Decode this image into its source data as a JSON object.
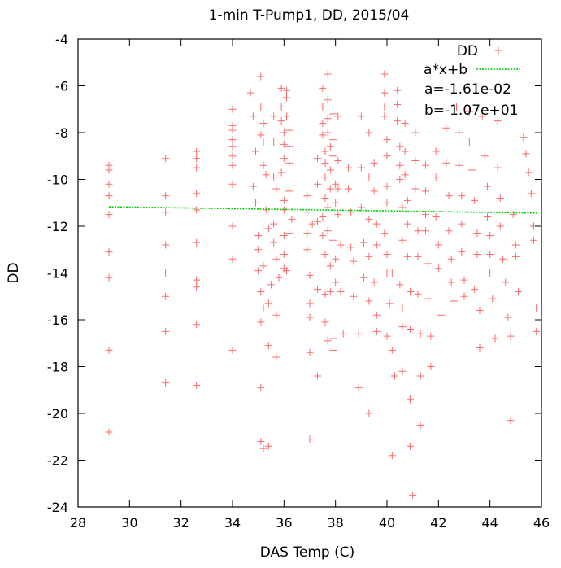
{
  "chart_data": {
    "type": "scatter",
    "title": "1-min T-Pump1, DD, 2015/04",
    "xlabel": "DAS Temp (C)",
    "ylabel": "DD",
    "xlim": [
      28,
      46
    ],
    "ylim": [
      -24,
      -4
    ],
    "xticks": [
      "28",
      "30",
      "32",
      "34",
      "36",
      "38",
      "40",
      "42",
      "44",
      "46"
    ],
    "yticks": [
      "-24",
      "-22",
      "-20",
      "-18",
      "-16",
      "-14",
      "-12",
      "-10",
      "-8",
      "-6",
      "-4"
    ],
    "grid": false,
    "legend_position": "top-right",
    "colors": {
      "points": "#ff6a6a",
      "fit": "#00cc00",
      "frame": "#000000"
    },
    "series": [
      {
        "name": "DD",
        "marker": "plus",
        "points": [
          [
            29.2,
            -9.4
          ],
          [
            29.2,
            -9.6
          ],
          [
            29.2,
            -10.2
          ],
          [
            29.2,
            -10.7
          ],
          [
            29.2,
            -11.5
          ],
          [
            29.2,
            -13.1
          ],
          [
            29.2,
            -14.2
          ],
          [
            29.2,
            -17.3
          ],
          [
            29.2,
            -20.8
          ],
          [
            31.4,
            -9.1
          ],
          [
            31.4,
            -10.7
          ],
          [
            31.4,
            -11.4
          ],
          [
            31.4,
            -12.8
          ],
          [
            31.4,
            -14.0
          ],
          [
            31.4,
            -15.0
          ],
          [
            31.4,
            -16.5
          ],
          [
            31.4,
            -18.7
          ],
          [
            32.6,
            -8.8
          ],
          [
            32.6,
            -9.1
          ],
          [
            32.6,
            -9.5
          ],
          [
            32.6,
            -10.6
          ],
          [
            32.6,
            -11.3
          ],
          [
            32.6,
            -12.7
          ],
          [
            32.6,
            -14.3
          ],
          [
            32.6,
            -14.6
          ],
          [
            32.6,
            -16.2
          ],
          [
            32.6,
            -18.8
          ],
          [
            34.0,
            -7.0
          ],
          [
            34.0,
            -7.7
          ],
          [
            34.0,
            -7.9
          ],
          [
            34.0,
            -8.3
          ],
          [
            34.0,
            -8.6
          ],
          [
            34.0,
            -9.0
          ],
          [
            34.0,
            -9.4
          ],
          [
            34.0,
            -10.2
          ],
          [
            34.0,
            -12.0
          ],
          [
            34.0,
            -13.4
          ],
          [
            34.0,
            -17.3
          ],
          [
            34.7,
            -6.3
          ],
          [
            34.8,
            -7.3
          ],
          [
            34.9,
            -8.8
          ],
          [
            34.8,
            -10.3
          ],
          [
            34.9,
            -11.0
          ],
          [
            35.0,
            -12.4
          ],
          [
            35.0,
            -13.0
          ],
          [
            35.0,
            -13.9
          ],
          [
            35.1,
            -5.6
          ],
          [
            35.1,
            -6.9
          ],
          [
            35.2,
            -7.6
          ],
          [
            35.1,
            -8.1
          ],
          [
            35.2,
            -8.4
          ],
          [
            35.2,
            -9.4
          ],
          [
            35.3,
            -9.8
          ],
          [
            35.3,
            -11.3
          ],
          [
            35.4,
            -12.1
          ],
          [
            35.2,
            -13.7
          ],
          [
            35.1,
            -14.8
          ],
          [
            35.2,
            -15.5
          ],
          [
            35.1,
            -16.1
          ],
          [
            35.1,
            -18.9
          ],
          [
            35.1,
            -21.2
          ],
          [
            35.2,
            -21.5
          ],
          [
            35.4,
            -21.4
          ],
          [
            35.4,
            -17.1
          ],
          [
            35.4,
            -15.3
          ],
          [
            35.5,
            -14.5
          ],
          [
            35.6,
            -7.3
          ],
          [
            35.6,
            -8.4
          ],
          [
            35.6,
            -9.9
          ],
          [
            35.7,
            -10.4
          ],
          [
            35.6,
            -11.9
          ],
          [
            35.6,
            -12.7
          ],
          [
            35.7,
            -13.4
          ],
          [
            35.8,
            -14.2
          ],
          [
            35.7,
            -15.8
          ],
          [
            35.7,
            -17.6
          ],
          [
            35.9,
            -6.1
          ],
          [
            35.9,
            -6.9
          ],
          [
            35.9,
            -7.5
          ],
          [
            36.0,
            -8.0
          ],
          [
            36.0,
            -8.5
          ],
          [
            36.0,
            -9.1
          ],
          [
            35.9,
            -9.7
          ],
          [
            36.0,
            -10.9
          ],
          [
            36.0,
            -11.3
          ],
          [
            36.0,
            -12.4
          ],
          [
            36.0,
            -13.2
          ],
          [
            36.0,
            -13.8
          ],
          [
            36.1,
            -6.2
          ],
          [
            36.1,
            -6.5
          ],
          [
            36.1,
            -7.3
          ],
          [
            36.2,
            -7.9
          ],
          [
            36.2,
            -8.6
          ],
          [
            36.2,
            -9.3
          ],
          [
            36.2,
            -10.5
          ],
          [
            36.3,
            -11.7
          ],
          [
            36.2,
            -12.3
          ],
          [
            36.1,
            -13.9
          ],
          [
            36.9,
            -10.7
          ],
          [
            36.9,
            -11.4
          ],
          [
            36.9,
            -12.3
          ],
          [
            36.9,
            -13.0
          ],
          [
            37.0,
            -14.1
          ],
          [
            37.0,
            -15.3
          ],
          [
            37.0,
            -15.9
          ],
          [
            37.0,
            -17.4
          ],
          [
            37.0,
            -21.1
          ],
          [
            37.1,
            -11.9
          ],
          [
            37.3,
            -9.1
          ],
          [
            37.3,
            -10.2
          ],
          [
            37.3,
            -11.8
          ],
          [
            37.3,
            -14.7
          ],
          [
            37.3,
            -18.4
          ],
          [
            37.5,
            -6.1
          ],
          [
            37.5,
            -6.9
          ],
          [
            37.5,
            -7.6
          ],
          [
            37.5,
            -8.1
          ],
          [
            37.6,
            -8.8
          ],
          [
            37.6,
            -9.3
          ],
          [
            37.6,
            -9.9
          ],
          [
            37.6,
            -10.8
          ],
          [
            37.5,
            -11.6
          ],
          [
            37.5,
            -12.4
          ],
          [
            37.6,
            -13.2
          ],
          [
            37.6,
            -14.9
          ],
          [
            37.6,
            -16.1
          ],
          [
            37.7,
            -5.5
          ],
          [
            37.7,
            -6.6
          ],
          [
            37.7,
            -7.4
          ],
          [
            37.7,
            -8.0
          ],
          [
            37.8,
            -8.6
          ],
          [
            37.8,
            -9.6
          ],
          [
            37.8,
            -10.4
          ],
          [
            37.7,
            -11.2
          ],
          [
            37.7,
            -12.2
          ],
          [
            37.8,
            -13.7
          ],
          [
            37.8,
            -14.8
          ],
          [
            37.7,
            -16.9
          ],
          [
            37.9,
            -7.2
          ],
          [
            37.9,
            -8.3
          ],
          [
            37.9,
            -9.0
          ],
          [
            38.0,
            -10.2
          ],
          [
            38.0,
            -11.0
          ],
          [
            37.9,
            -12.6
          ],
          [
            38.0,
            -13.4
          ],
          [
            38.0,
            -14.4
          ],
          [
            37.9,
            -16.8
          ],
          [
            37.9,
            -17.3
          ],
          [
            38.1,
            -7.3
          ],
          [
            38.1,
            -9.2
          ],
          [
            38.1,
            -10.4
          ],
          [
            38.1,
            -11.5
          ],
          [
            38.2,
            -12.8
          ],
          [
            38.2,
            -14.8
          ],
          [
            38.3,
            -16.6
          ],
          [
            38.5,
            -9.5
          ],
          [
            38.5,
            -10.4
          ],
          [
            38.6,
            -11.4
          ],
          [
            38.6,
            -12.9
          ],
          [
            38.7,
            -13.5
          ],
          [
            38.7,
            -15.0
          ],
          [
            38.9,
            -16.6
          ],
          [
            38.9,
            -18.9
          ],
          [
            39.0,
            -7.3
          ],
          [
            39.0,
            -9.5
          ],
          [
            39.0,
            -11.2
          ],
          [
            39.1,
            -12.7
          ],
          [
            39.1,
            -14.2
          ],
          [
            39.3,
            -8.0
          ],
          [
            39.3,
            -9.9
          ],
          [
            39.3,
            -11.7
          ],
          [
            39.3,
            -13.3
          ],
          [
            39.3,
            -15.2
          ],
          [
            39.3,
            -20.0
          ],
          [
            39.5,
            -9.3
          ],
          [
            39.5,
            -10.5
          ],
          [
            39.6,
            -11.9
          ],
          [
            39.6,
            -12.8
          ],
          [
            39.5,
            -14.4
          ],
          [
            39.6,
            -15.8
          ],
          [
            39.6,
            -16.5
          ],
          [
            39.9,
            -5.5
          ],
          [
            39.9,
            -6.3
          ],
          [
            39.9,
            -6.9
          ],
          [
            39.9,
            -7.3
          ],
          [
            40.0,
            -8.3
          ],
          [
            40.0,
            -9.0
          ],
          [
            40.0,
            -10.3
          ],
          [
            40.0,
            -11.0
          ],
          [
            39.9,
            -12.3
          ],
          [
            40.0,
            -13.2
          ],
          [
            40.0,
            -14.0
          ],
          [
            40.1,
            -15.3
          ],
          [
            40.0,
            -16.7
          ],
          [
            40.2,
            -14.0
          ],
          [
            40.2,
            -17.3
          ],
          [
            40.3,
            -18.4
          ],
          [
            40.2,
            -21.8
          ],
          [
            40.4,
            -6.2
          ],
          [
            40.4,
            -6.8
          ],
          [
            40.4,
            -7.5
          ],
          [
            40.5,
            -8.6
          ],
          [
            40.5,
            -9.4
          ],
          [
            40.5,
            -10.0
          ],
          [
            40.6,
            -11.2
          ],
          [
            40.6,
            -12.6
          ],
          [
            40.5,
            -14.5
          ],
          [
            40.6,
            -15.5
          ],
          [
            40.6,
            -16.3
          ],
          [
            40.6,
            -18.2
          ],
          [
            40.7,
            -7.6
          ],
          [
            40.7,
            -8.8
          ],
          [
            40.7,
            -9.8
          ],
          [
            40.8,
            -10.9
          ],
          [
            40.8,
            -11.9
          ],
          [
            40.8,
            -13.3
          ],
          [
            40.9,
            -14.8
          ],
          [
            40.9,
            -16.4
          ],
          [
            40.9,
            -19.4
          ],
          [
            40.9,
            -21.4
          ],
          [
            41.0,
            -23.5
          ],
          [
            41.1,
            -8.0
          ],
          [
            41.1,
            -9.2
          ],
          [
            41.1,
            -10.4
          ],
          [
            41.2,
            -12.2
          ],
          [
            41.2,
            -13.3
          ],
          [
            41.2,
            -14.9
          ],
          [
            41.3,
            -16.6
          ],
          [
            41.3,
            -18.4
          ],
          [
            41.3,
            -20.5
          ],
          [
            41.5,
            -9.4
          ],
          [
            41.5,
            -10.5
          ],
          [
            41.5,
            -11.5
          ],
          [
            41.5,
            -12.2
          ],
          [
            41.6,
            -13.6
          ],
          [
            41.6,
            -15.1
          ],
          [
            41.7,
            -16.7
          ],
          [
            41.7,
            -18.0
          ],
          [
            41.9,
            -8.8
          ],
          [
            41.9,
            -9.9
          ],
          [
            41.9,
            -11.6
          ],
          [
            42.0,
            -12.8
          ],
          [
            42.0,
            -13.8
          ],
          [
            42.1,
            -15.8
          ],
          [
            42.3,
            -7.8
          ],
          [
            42.3,
            -9.3
          ],
          [
            42.4,
            -10.7
          ],
          [
            42.4,
            -12.2
          ],
          [
            42.5,
            -13.4
          ],
          [
            42.5,
            -14.4
          ],
          [
            42.6,
            -15.2
          ],
          [
            42.7,
            -6.9
          ],
          [
            42.8,
            -8.0
          ],
          [
            42.8,
            -9.4
          ],
          [
            42.9,
            -10.7
          ],
          [
            42.9,
            -11.9
          ],
          [
            42.9,
            -13.1
          ],
          [
            43.0,
            -14.3
          ],
          [
            43.0,
            -15.0
          ],
          [
            43.2,
            -7.1
          ],
          [
            43.2,
            -8.4
          ],
          [
            43.3,
            -9.6
          ],
          [
            43.4,
            -10.9
          ],
          [
            43.5,
            -12.3
          ],
          [
            43.5,
            -13.2
          ],
          [
            43.4,
            -14.7
          ],
          [
            43.6,
            -15.6
          ],
          [
            43.6,
            -17.2
          ],
          [
            43.7,
            -7.3
          ],
          [
            43.8,
            -9.0
          ],
          [
            43.9,
            -10.3
          ],
          [
            43.9,
            -11.6
          ],
          [
            44.0,
            -12.4
          ],
          [
            44.0,
            -13.2
          ],
          [
            44.0,
            -14.0
          ],
          [
            44.1,
            -15.1
          ],
          [
            44.2,
            -16.8
          ],
          [
            44.3,
            -7.5
          ],
          [
            44.3,
            -9.5
          ],
          [
            44.4,
            -10.8
          ],
          [
            44.4,
            -12.0
          ],
          [
            44.5,
            -13.4
          ],
          [
            44.6,
            -14.4
          ],
          [
            44.7,
            -15.9
          ],
          [
            44.8,
            -16.7
          ],
          [
            44.8,
            -20.3
          ],
          [
            44.9,
            -11.5
          ],
          [
            45.0,
            -12.8
          ],
          [
            45.0,
            -13.3
          ],
          [
            45.1,
            -14.8
          ],
          [
            45.3,
            -8.2
          ],
          [
            45.4,
            -8.9
          ],
          [
            45.5,
            -9.7
          ],
          [
            45.6,
            -10.6
          ],
          [
            45.7,
            -12.0
          ],
          [
            45.7,
            -12.6
          ],
          [
            45.8,
            -15.5
          ],
          [
            45.8,
            -16.5
          ]
        ]
      },
      {
        "name": "a*x+b",
        "type": "line",
        "style": "dotted",
        "a": -0.0161,
        "b": -10.7,
        "x_range": [
          29.2,
          45.9
        ]
      }
    ],
    "annotations": [
      "a=-1.61e-02",
      "b=-1.07e+01"
    ]
  }
}
